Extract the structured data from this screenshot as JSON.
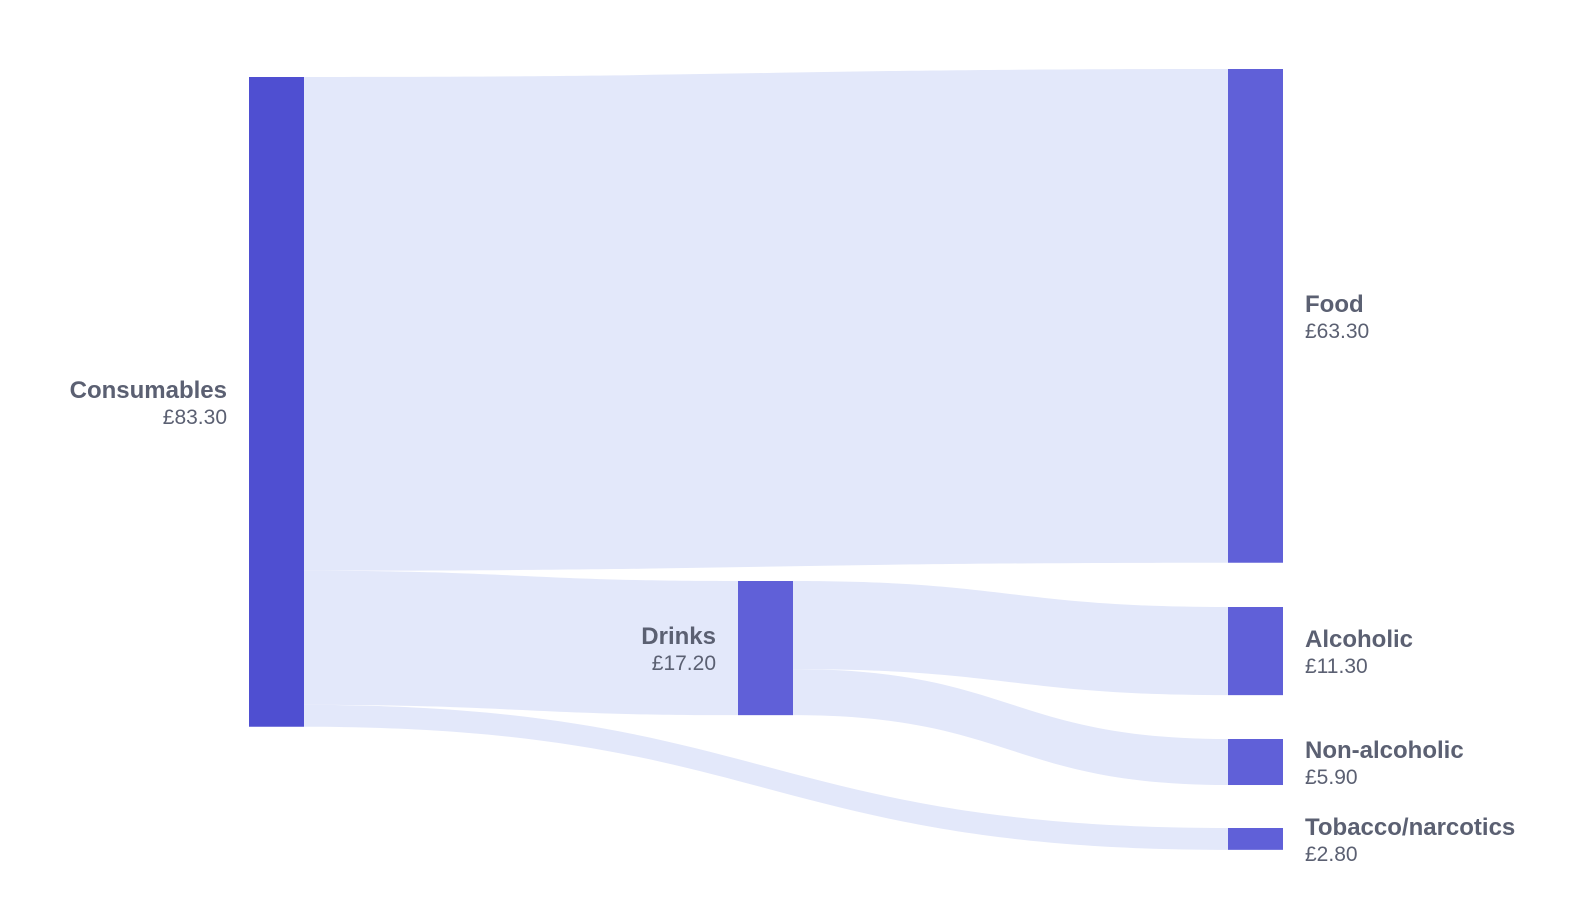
{
  "chart_data": {
    "type": "sankey",
    "nodes": [
      {
        "id": "consumables",
        "name": "Consumables",
        "value": 83.3,
        "value_label": "£83.30",
        "stage": 0,
        "label_side": "left"
      },
      {
        "id": "drinks",
        "name": "Drinks",
        "value": 17.2,
        "value_label": "£17.20",
        "stage": 1,
        "label_side": "left"
      },
      {
        "id": "food",
        "name": "Food",
        "value": 63.3,
        "value_label": "£63.30",
        "stage": 2,
        "label_side": "right"
      },
      {
        "id": "alcoholic",
        "name": "Alcoholic",
        "value": 11.3,
        "value_label": "£11.30",
        "stage": 2,
        "label_side": "right"
      },
      {
        "id": "non_alcoholic",
        "name": "Non-alcoholic",
        "value": 5.9,
        "value_label": "£5.90",
        "stage": 2,
        "label_side": "right"
      },
      {
        "id": "tobacco",
        "name": "Tobacco/narcotics",
        "value": 2.8,
        "value_label": "£2.80",
        "stage": 2,
        "label_side": "right"
      }
    ],
    "links": [
      {
        "source": "consumables",
        "target": "food",
        "value": 63.3
      },
      {
        "source": "consumables",
        "target": "drinks",
        "value": 17.2
      },
      {
        "source": "consumables",
        "target": "tobacco",
        "value": 2.8
      },
      {
        "source": "drinks",
        "target": "alcoholic",
        "value": 11.3
      },
      {
        "source": "drinks",
        "target": "non_alcoholic",
        "value": 5.9
      }
    ],
    "colors": {
      "source_node": "#4f4fd1",
      "node": "#6060d8",
      "link": "#e3e8fa",
      "label": "#5b6072"
    }
  }
}
